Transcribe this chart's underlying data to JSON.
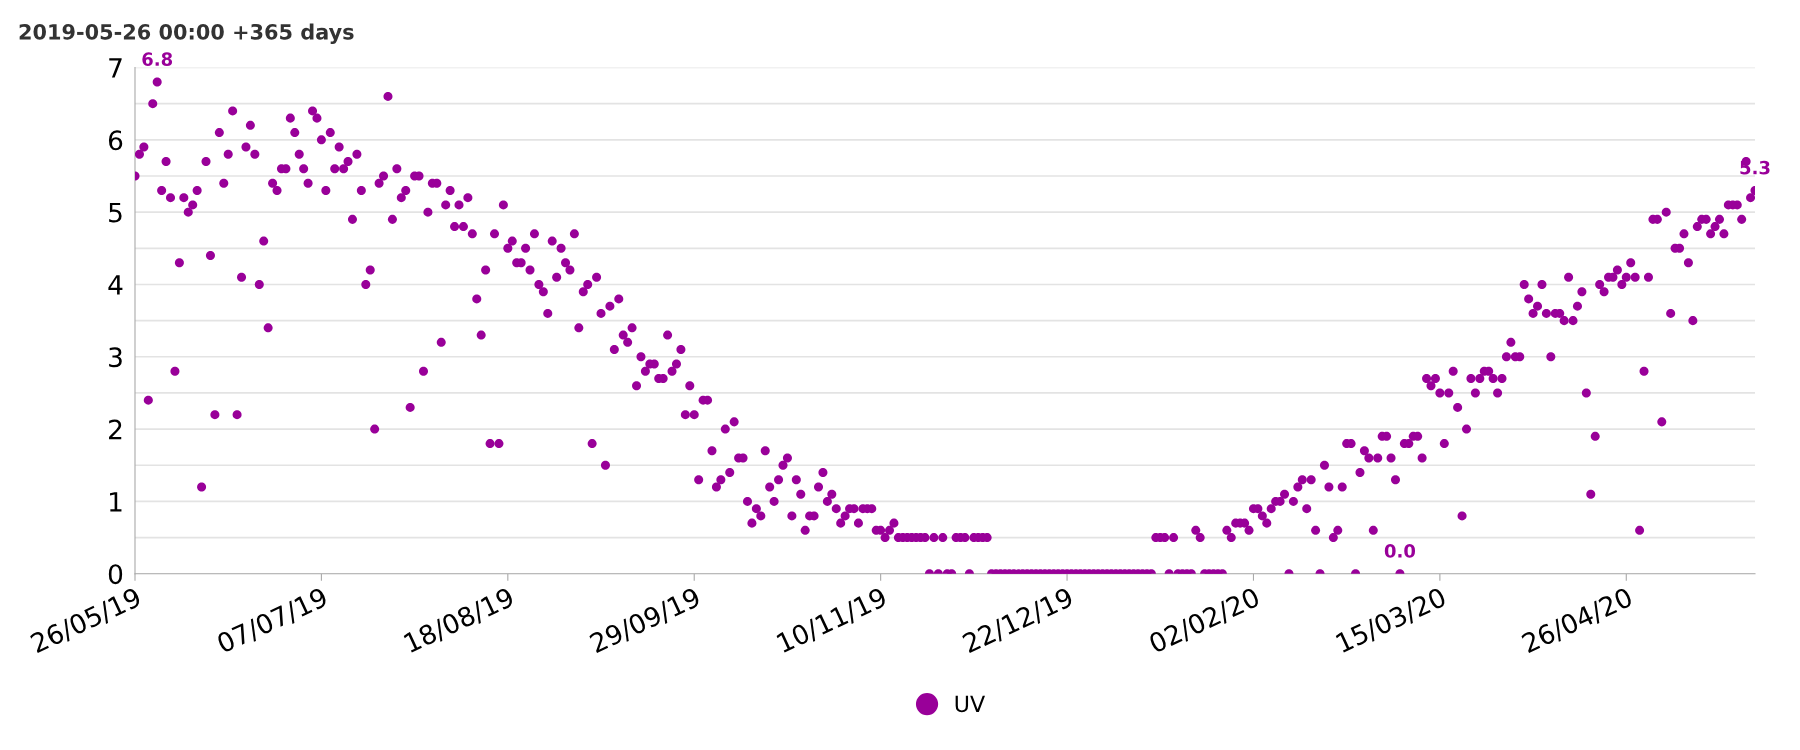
{
  "chart_data": {
    "type": "scatter",
    "title": "2019-05-26 00:00 +365 days",
    "x": [
      "2019-05-26",
      "2019-05-27",
      "2019-05-28",
      "2019-05-29",
      "2019-05-30",
      "2019-05-31",
      "2019-06-01",
      "2019-06-02",
      "2019-06-03",
      "2019-06-04",
      "2019-06-05",
      "2019-06-06",
      "2019-06-07",
      "2019-06-08",
      "2019-06-09",
      "2019-06-10",
      "2019-06-11",
      "2019-06-12",
      "2019-06-13",
      "2019-06-14",
      "2019-06-15",
      "2019-06-16",
      "2019-06-17",
      "2019-06-18",
      "2019-06-19",
      "2019-06-20",
      "2019-06-21",
      "2019-06-22",
      "2019-06-23",
      "2019-06-24",
      "2019-06-25",
      "2019-06-26",
      "2019-06-27",
      "2019-06-28",
      "2019-06-29",
      "2019-06-30",
      "2019-07-01",
      "2019-07-02",
      "2019-07-03",
      "2019-07-04",
      "2019-07-05",
      "2019-07-06",
      "2019-07-07",
      "2019-07-08",
      "2019-07-09",
      "2019-07-10",
      "2019-07-11",
      "2019-07-12",
      "2019-07-13",
      "2019-07-14",
      "2019-07-15",
      "2019-07-16",
      "2019-07-17",
      "2019-07-18",
      "2019-07-19",
      "2019-07-20",
      "2019-07-21",
      "2019-07-22",
      "2019-07-23",
      "2019-07-24",
      "2019-07-25",
      "2019-07-26",
      "2019-07-27",
      "2019-07-28",
      "2019-07-29",
      "2019-07-30",
      "2019-07-31",
      "2019-08-01",
      "2019-08-02",
      "2019-08-03",
      "2019-08-04",
      "2019-08-05",
      "2019-08-06",
      "2019-08-07",
      "2019-08-08",
      "2019-08-09",
      "2019-08-10",
      "2019-08-11",
      "2019-08-12",
      "2019-08-13",
      "2019-08-14",
      "2019-08-15",
      "2019-08-16",
      "2019-08-17",
      "2019-08-18",
      "2019-08-19",
      "2019-08-20",
      "2019-08-21",
      "2019-08-22",
      "2019-08-23",
      "2019-08-24",
      "2019-08-25",
      "2019-08-26",
      "2019-08-27",
      "2019-08-28",
      "2019-08-29",
      "2019-08-30",
      "2019-08-31",
      "2019-09-01",
      "2019-09-02",
      "2019-09-03",
      "2019-09-04",
      "2019-09-05",
      "2019-09-06",
      "2019-09-07",
      "2019-09-08",
      "2019-09-09",
      "2019-09-10",
      "2019-09-11",
      "2019-09-12",
      "2019-09-13",
      "2019-09-14",
      "2019-09-15",
      "2019-09-16",
      "2019-09-17",
      "2019-09-18",
      "2019-09-19",
      "2019-09-20",
      "2019-09-21",
      "2019-09-22",
      "2019-09-23",
      "2019-09-24",
      "2019-09-25",
      "2019-09-26",
      "2019-09-27",
      "2019-09-28",
      "2019-09-29",
      "2019-09-30",
      "2019-10-01",
      "2019-10-02",
      "2019-10-03",
      "2019-10-04",
      "2019-10-05",
      "2019-10-06",
      "2019-10-07",
      "2019-10-08",
      "2019-10-09",
      "2019-10-10",
      "2019-10-11",
      "2019-10-12",
      "2019-10-13",
      "2019-10-14",
      "2019-10-15",
      "2019-10-16",
      "2019-10-17",
      "2019-10-18",
      "2019-10-19",
      "2019-10-20",
      "2019-10-21",
      "2019-10-22",
      "2019-10-23",
      "2019-10-24",
      "2019-10-25",
      "2019-10-26",
      "2019-10-27",
      "2019-10-28",
      "2019-10-29",
      "2019-10-30",
      "2019-10-31",
      "2019-11-01",
      "2019-11-02",
      "2019-11-03",
      "2019-11-04",
      "2019-11-05",
      "2019-11-06",
      "2019-11-07",
      "2019-11-08",
      "2019-11-09",
      "2019-11-10",
      "2019-11-11",
      "2019-11-12",
      "2019-11-13",
      "2019-11-14",
      "2019-11-15",
      "2019-11-16",
      "2019-11-17",
      "2019-11-18",
      "2019-11-19",
      "2019-11-20",
      "2019-11-21",
      "2019-11-22",
      "2019-11-23",
      "2019-11-24",
      "2019-11-25",
      "2019-11-26",
      "2019-11-27",
      "2019-11-28",
      "2019-11-29",
      "2019-11-30",
      "2019-12-01",
      "2019-12-02",
      "2019-12-03",
      "2019-12-04",
      "2019-12-05",
      "2019-12-06",
      "2019-12-07",
      "2019-12-08",
      "2019-12-09",
      "2019-12-10",
      "2019-12-11",
      "2019-12-12",
      "2019-12-13",
      "2019-12-14",
      "2019-12-15",
      "2019-12-16",
      "2019-12-17",
      "2019-12-18",
      "2019-12-19",
      "2019-12-20",
      "2019-12-21",
      "2019-12-22",
      "2019-12-23",
      "2019-12-24",
      "2019-12-25",
      "2019-12-26",
      "2019-12-27",
      "2019-12-28",
      "2019-12-29",
      "2019-12-30",
      "2019-12-31",
      "2020-01-01",
      "2020-01-02",
      "2020-01-03",
      "2020-01-04",
      "2020-01-05",
      "2020-01-06",
      "2020-01-07",
      "2020-01-08",
      "2020-01-09",
      "2020-01-10",
      "2020-01-11",
      "2020-01-12",
      "2020-01-13",
      "2020-01-14",
      "2020-01-15",
      "2020-01-16",
      "2020-01-17",
      "2020-01-18",
      "2020-01-19",
      "2020-01-20",
      "2020-01-21",
      "2020-01-22",
      "2020-01-23",
      "2020-01-24",
      "2020-01-25",
      "2020-01-26",
      "2020-01-27",
      "2020-01-28",
      "2020-01-29",
      "2020-01-30",
      "2020-01-31",
      "2020-02-01",
      "2020-02-02",
      "2020-02-03",
      "2020-02-04",
      "2020-02-05",
      "2020-02-06",
      "2020-02-07",
      "2020-02-08",
      "2020-02-09",
      "2020-02-10",
      "2020-02-11",
      "2020-02-12",
      "2020-02-13",
      "2020-02-14",
      "2020-02-15",
      "2020-02-16",
      "2020-02-17",
      "2020-02-18",
      "2020-02-19",
      "2020-02-20",
      "2020-02-21",
      "2020-02-22",
      "2020-02-23",
      "2020-02-24",
      "2020-02-25",
      "2020-02-26",
      "2020-02-27",
      "2020-02-28",
      "2020-02-29",
      "2020-03-01",
      "2020-03-02",
      "2020-03-03",
      "2020-03-04",
      "2020-03-05",
      "2020-03-06",
      "2020-03-07",
      "2020-03-08",
      "2020-03-09",
      "2020-03-10",
      "2020-03-11",
      "2020-03-12",
      "2020-03-13",
      "2020-03-14",
      "2020-03-15",
      "2020-03-16",
      "2020-03-17",
      "2020-03-18",
      "2020-03-19",
      "2020-03-20",
      "2020-03-21",
      "2020-03-22",
      "2020-03-23",
      "2020-03-24",
      "2020-03-25",
      "2020-03-26",
      "2020-03-27",
      "2020-03-28",
      "2020-03-29",
      "2020-03-30",
      "2020-03-31",
      "2020-04-01",
      "2020-04-02",
      "2020-04-03",
      "2020-04-04",
      "2020-04-05",
      "2020-04-06",
      "2020-04-07",
      "2020-04-08",
      "2020-04-09",
      "2020-04-10",
      "2020-04-11",
      "2020-04-12",
      "2020-04-13",
      "2020-04-14",
      "2020-04-15",
      "2020-04-16",
      "2020-04-17",
      "2020-04-18",
      "2020-04-19",
      "2020-04-20",
      "2020-04-21",
      "2020-04-22",
      "2020-04-23",
      "2020-04-24",
      "2020-04-25",
      "2020-04-26",
      "2020-04-27",
      "2020-04-28",
      "2020-04-29",
      "2020-04-30",
      "2020-05-01",
      "2020-05-02",
      "2020-05-03",
      "2020-05-04",
      "2020-05-05",
      "2020-05-06",
      "2020-05-07",
      "2020-05-08",
      "2020-05-09",
      "2020-05-10",
      "2020-05-11",
      "2020-05-12",
      "2020-05-13",
      "2020-05-14",
      "2020-05-15",
      "2020-05-16",
      "2020-05-17",
      "2020-05-18",
      "2020-05-19",
      "2020-05-20",
      "2020-05-21",
      "2020-05-22",
      "2020-05-23",
      "2020-05-24",
      "2020-05-25"
    ],
    "series": [
      {
        "name": "UV",
        "color": "#990099",
        "values": [
          5.5,
          5.8,
          5.9,
          2.4,
          6.5,
          6.8,
          5.3,
          5.7,
          5.2,
          2.8,
          4.3,
          5.2,
          5.0,
          5.1,
          5.3,
          1.2,
          5.7,
          4.4,
          2.2,
          6.1,
          5.4,
          5.8,
          6.4,
          2.2,
          4.1,
          5.9,
          6.2,
          5.8,
          4.0,
          4.6,
          3.4,
          5.4,
          5.3,
          5.6,
          5.6,
          6.3,
          6.1,
          5.8,
          5.6,
          5.4,
          6.4,
          6.3,
          6.0,
          5.3,
          6.1,
          5.6,
          5.9,
          5.6,
          5.7,
          4.9,
          5.8,
          5.3,
          4.0,
          4.2,
          2.0,
          5.4,
          5.5,
          6.6,
          4.9,
          5.6,
          5.2,
          5.3,
          2.3,
          5.5,
          5.5,
          2.8,
          5.0,
          5.4,
          5.4,
          3.2,
          5.1,
          5.3,
          4.8,
          5.1,
          4.8,
          5.2,
          4.7,
          3.8,
          3.3,
          4.2,
          1.8,
          4.7,
          1.8,
          5.1,
          4.5,
          4.6,
          4.3,
          4.3,
          4.5,
          4.2,
          4.7,
          4.0,
          3.9,
          3.6,
          4.6,
          4.1,
          4.5,
          4.3,
          4.2,
          4.7,
          3.4,
          3.9,
          4.0,
          1.8,
          4.1,
          3.6,
          1.5,
          3.7,
          3.1,
          3.8,
          3.3,
          3.2,
          3.4,
          2.6,
          3.0,
          2.8,
          2.9,
          2.9,
          2.7,
          2.7,
          3.3,
          2.8,
          2.9,
          3.1,
          2.2,
          2.6,
          2.2,
          1.3,
          2.4,
          2.4,
          1.7,
          1.2,
          1.3,
          2.0,
          1.4,
          2.1,
          1.6,
          1.6,
          1.0,
          0.7,
          0.9,
          0.8,
          1.7,
          1.2,
          1.0,
          1.3,
          1.5,
          1.6,
          0.8,
          1.3,
          1.1,
          0.6,
          0.8,
          0.8,
          1.2,
          1.4,
          1.0,
          1.1,
          0.9,
          0.7,
          0.8,
          0.9,
          0.9,
          0.7,
          0.9,
          0.9,
          0.9,
          0.6,
          0.6,
          0.5,
          0.6,
          0.7,
          0.5,
          0.5,
          0.5,
          0.5,
          0.5,
          0.5,
          0.5,
          0.0,
          0.5,
          0.0,
          0.5,
          0.0,
          0.0,
          0.5,
          0.5,
          0.5,
          0.0,
          0.5,
          0.5,
          0.5,
          0.5,
          0.0,
          0.0,
          0.0,
          0.0,
          0.0,
          0.0,
          0.0,
          0.0,
          0.0,
          0.0,
          0.0,
          0.0,
          0.0,
          0.0,
          0.0,
          0.0,
          0.0,
          0.0,
          0.0,
          0.0,
          0.0,
          0.0,
          0.0,
          0.0,
          0.0,
          0.0,
          0.0,
          0.0,
          0.0,
          0.0,
          0.0,
          0.0,
          0.0,
          0.0,
          0.0,
          0.0,
          0.0,
          0.5,
          0.5,
          0.5,
          0.0,
          0.5,
          0.0,
          0.0,
          0.0,
          0.0,
          0.6,
          0.5,
          0.0,
          0.0,
          0.0,
          0.0,
          0.0,
          0.6,
          0.5,
          0.7,
          0.7,
          0.7,
          0.6,
          0.9,
          0.9,
          0.8,
          0.7,
          0.9,
          1.0,
          1.0,
          1.1,
          0.0,
          1.0,
          1.2,
          1.3,
          0.9,
          1.3,
          0.6,
          0.0,
          1.5,
          1.2,
          0.5,
          0.6,
          1.2,
          1.8,
          1.8,
          0.0,
          1.4,
          1.7,
          1.6,
          0.6,
          1.6,
          1.9,
          1.9,
          1.6,
          1.3,
          0.0,
          1.8,
          1.8,
          1.9,
          1.9,
          1.6,
          2.7,
          2.6,
          2.7,
          2.5,
          1.8,
          2.5,
          2.8,
          2.3,
          0.8,
          2.0,
          2.7,
          2.5,
          2.7,
          2.8,
          2.8,
          2.7,
          2.5,
          2.7,
          3.0,
          3.2,
          3.0,
          3.0,
          4.0,
          3.8,
          3.6,
          3.7,
          4.0,
          3.6,
          3.0,
          3.6,
          3.6,
          3.5,
          4.1,
          3.5,
          3.7,
          3.9,
          2.5,
          1.1,
          1.9,
          4.0,
          3.9,
          4.1,
          4.1,
          4.2,
          4.0,
          4.1,
          4.3,
          4.1,
          0.6,
          2.8,
          4.1,
          4.9,
          4.9,
          2.1,
          5.0,
          3.6,
          4.5,
          4.5,
          4.7,
          4.3,
          3.5,
          4.8,
          4.9,
          4.9,
          4.7,
          4.8,
          4.9,
          4.7,
          5.1,
          5.1,
          5.1,
          4.9,
          5.7,
          5.2,
          5.3
        ]
      }
    ],
    "xlim": [
      "2019-05-26",
      "2020-05-25"
    ],
    "xticks": [
      {
        "value": "2019-05-26",
        "label": "26/05/19"
      },
      {
        "value": "2019-07-07",
        "label": "07/07/19"
      },
      {
        "value": "2019-08-18",
        "label": "18/08/19"
      },
      {
        "value": "2019-09-29",
        "label": "29/09/19"
      },
      {
        "value": "2019-11-10",
        "label": "10/11/19"
      },
      {
        "value": "2019-12-22",
        "label": "22/12/19"
      },
      {
        "value": "2020-02-02",
        "label": "02/02/20"
      },
      {
        "value": "2020-03-15",
        "label": "15/03/20"
      },
      {
        "value": "2020-04-26",
        "label": "26/04/20"
      }
    ],
    "ylim": [
      0,
      7
    ],
    "yticks": [
      0,
      {
        "value": 0.5,
        "label": null
      },
      1,
      {
        "value": 1.5,
        "label": null
      },
      2,
      {
        "value": 2.5,
        "label": null
      },
      3,
      {
        "value": 3.5,
        "label": null
      },
      4,
      {
        "value": 4.5,
        "label": null
      },
      5,
      {
        "value": 5.5,
        "label": null
      },
      6,
      {
        "value": 6.5,
        "label": null
      },
      7
    ],
    "annotations": [
      {
        "text": "6.8",
        "x": "2019-05-31",
        "y": 6.8
      },
      {
        "text": "0.0",
        "x": "2020-03-06",
        "y": 0
      },
      {
        "text": "5.3",
        "x": "2020-05-25",
        "y": 5.3
      }
    ],
    "grid": "y",
    "legend": "bottom",
    "marker": "circle"
  }
}
